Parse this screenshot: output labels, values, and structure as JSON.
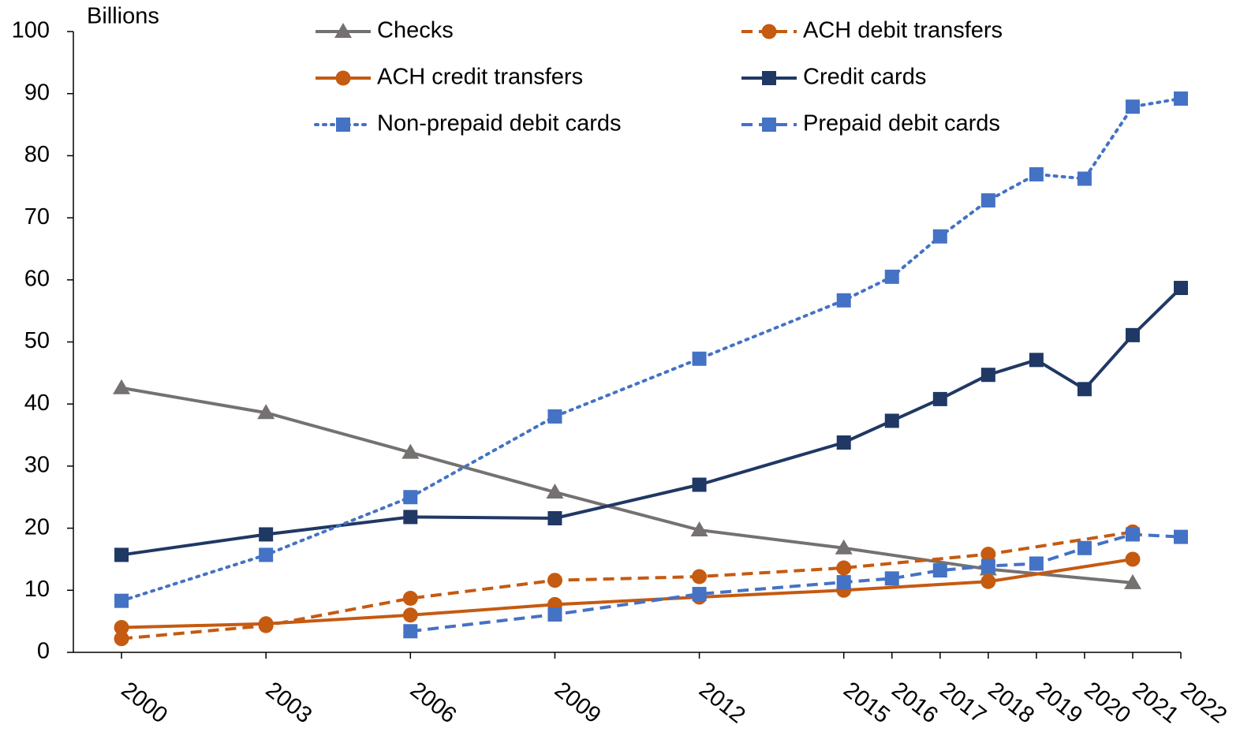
{
  "chart_data": {
    "type": "line",
    "y_label": "Billions",
    "xlim": [
      1999,
      2022
    ],
    "xticks": [
      2000,
      2003,
      2006,
      2009,
      2012,
      2015,
      2016,
      2017,
      2018,
      2019,
      2020,
      2021,
      2022
    ],
    "ylim": [
      0,
      100
    ],
    "yticks": [
      0,
      10,
      20,
      30,
      40,
      50,
      60,
      70,
      80,
      90,
      100
    ],
    "grid": false,
    "legend": "top",
    "series": [
      {
        "name": "Checks",
        "color": "#767171",
        "dash": "solid",
        "marker": "triangle",
        "x": [
          2000,
          2003,
          2006,
          2009,
          2012,
          2015,
          2018,
          2021
        ],
        "values": [
          42.6,
          38.6,
          32.2,
          25.8,
          19.7,
          16.8,
          13.4,
          11.2
        ]
      },
      {
        "name": "ACH debit transfers",
        "color": "#c55a11",
        "dash": "dashed",
        "marker": "circle",
        "x": [
          2000,
          2003,
          2006,
          2009,
          2012,
          2015,
          2018,
          2021
        ],
        "values": [
          2.2,
          4.3,
          8.7,
          11.6,
          12.2,
          13.6,
          15.8,
          19.4
        ]
      },
      {
        "name": "ACH credit transfers",
        "color": "#c55a11",
        "dash": "solid",
        "marker": "circle",
        "x": [
          2000,
          2003,
          2006,
          2009,
          2012,
          2015,
          2018,
          2021
        ],
        "values": [
          4.0,
          4.6,
          6.0,
          7.7,
          8.9,
          10.0,
          11.4,
          15.0
        ]
      },
      {
        "name": "Credit cards",
        "color": "#203864",
        "dash": "solid",
        "marker": "square",
        "x": [
          2000,
          2003,
          2006,
          2009,
          2012,
          2015,
          2016,
          2017,
          2018,
          2019,
          2020,
          2021,
          2022
        ],
        "values": [
          15.7,
          19.0,
          21.8,
          21.6,
          27.0,
          33.8,
          37.3,
          40.8,
          44.7,
          47.1,
          42.4,
          51.1,
          58.7
        ]
      },
      {
        "name": "Non-prepaid debit cards",
        "color": "#4472c4",
        "dash": "dotted",
        "marker": "square",
        "x": [
          2000,
          2003,
          2006,
          2009,
          2012,
          2015,
          2016,
          2017,
          2018,
          2019,
          2020,
          2021,
          2022
        ],
        "values": [
          8.3,
          15.7,
          25.0,
          38.0,
          47.3,
          56.7,
          60.5,
          67.0,
          72.8,
          77.0,
          76.3,
          87.9,
          89.2
        ]
      },
      {
        "name": "Prepaid debit cards",
        "color": "#4472c4",
        "dash": "dashed",
        "marker": "square",
        "x": [
          2006,
          2009,
          2012,
          2015,
          2016,
          2017,
          2018,
          2019,
          2020,
          2021,
          2022
        ],
        "values": [
          3.4,
          6.1,
          9.4,
          11.3,
          11.9,
          13.2,
          13.9,
          14.3,
          16.8,
          19.0,
          18.6
        ]
      }
    ]
  }
}
